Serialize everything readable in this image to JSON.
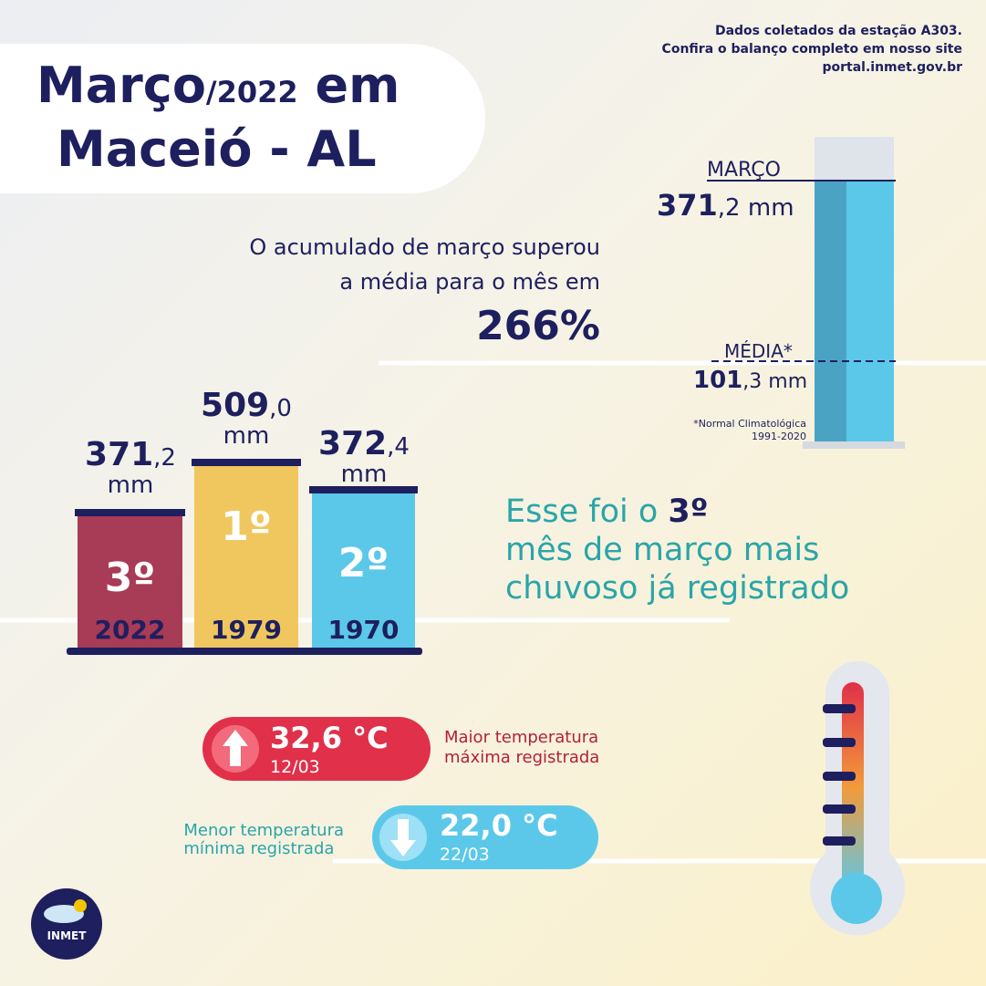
{
  "header": {
    "title_month": "Março",
    "title_year": "/2022",
    "title_em": "em",
    "title_city": "Maceió - AL"
  },
  "source": {
    "lines": [
      "Dados coletados da estação A303.",
      "Confira o balanço completo em nosso site",
      "portal.inmet.gov.br"
    ]
  },
  "summary": {
    "lines": [
      "O acumulado de março superou",
      "a média para o mês em"
    ],
    "percent": "266%"
  },
  "cylinder": {
    "current": {
      "label": "MARÇO",
      "amount_int": "371",
      "amount_rest": ",2 mm"
    },
    "average": {
      "label": "MÉDIA*",
      "amount_int": "101",
      "amount_rest": ",3 mm"
    },
    "footnote": [
      "*Normal Climatológica",
      "1991-2020"
    ]
  },
  "ranking": [
    {
      "amount_int": "371",
      "amount_dec": ",2",
      "unit": "mm",
      "rank": "3º",
      "year": "2022"
    },
    {
      "amount_int": "509",
      "amount_dec": ",0",
      "unit": "mm",
      "rank": "1º",
      "year": "1979"
    },
    {
      "amount_int": "372",
      "amount_dec": ",4",
      "unit": "mm",
      "rank": "2º",
      "year": "1970"
    }
  ],
  "statement": {
    "prefix": "Esse foi o ",
    "highlight": "3º",
    "lines": [
      "mês de março mais",
      "chuvoso já registrado"
    ]
  },
  "temperatures": {
    "max": {
      "value": "32,6 °C",
      "date": "12/03",
      "label": [
        "Maior temperatura",
        "máxima registrada"
      ]
    },
    "min": {
      "value": "22,0 °C",
      "date": "22/03",
      "label": [
        "Menor temperatura",
        "mínima registrada"
      ]
    }
  },
  "logo": {
    "text": "INMET"
  }
}
